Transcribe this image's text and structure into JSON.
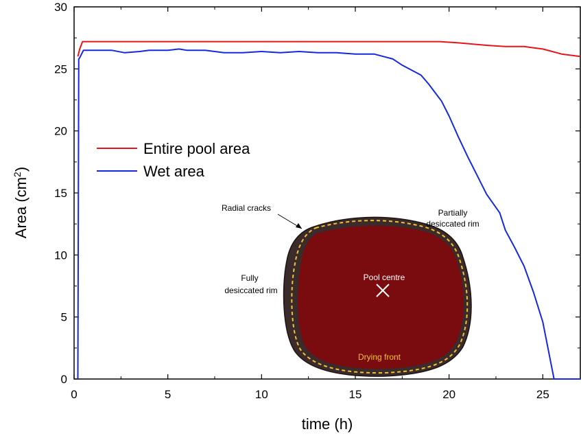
{
  "chart_data": {
    "type": "line",
    "xlabel": "time (h)",
    "ylabel": "Area (cm",
    "ylabel_sup": "2",
    "ylabel_close": ")",
    "xlim": [
      0,
      27
    ],
    "ylim": [
      0,
      30
    ],
    "xticks": [
      0,
      5,
      10,
      15,
      20,
      25
    ],
    "yticks": [
      0,
      5,
      10,
      15,
      20,
      25,
      30
    ],
    "grid": false,
    "legend_position": "left, upper-middle",
    "series": [
      {
        "name": "Entire pool area",
        "color": "#e8141c",
        "x": [
          0.2,
          0.3,
          0.45,
          2,
          6,
          10,
          14,
          17,
          19.5,
          20.5,
          22,
          23,
          24,
          24.5,
          25,
          25.5,
          26,
          26.5,
          27
        ],
        "y": [
          26.0,
          26.6,
          27.2,
          27.2,
          27.2,
          27.2,
          27.2,
          27.2,
          27.2,
          27.1,
          26.9,
          26.8,
          26.8,
          26.7,
          26.6,
          26.4,
          26.2,
          26.1,
          26.0
        ]
      },
      {
        "name": "Wet area",
        "color": "#1428e0",
        "x": [
          0.2,
          0.25,
          0.3,
          0.5,
          1,
          2,
          2.7,
          3.5,
          4,
          5,
          5.6,
          6,
          7,
          8,
          9,
          10,
          11,
          12,
          13,
          14,
          15,
          16,
          16.5,
          17,
          17.5,
          18,
          18.5,
          18.9,
          19.2,
          19.6,
          20,
          20.5,
          21,
          21.5,
          22,
          22.7,
          23,
          23.5,
          24,
          24.5,
          25,
          25.3,
          25.6,
          25.8,
          26.5,
          27
        ],
        "y": [
          0.0,
          25.8,
          25.9,
          26.5,
          26.5,
          26.5,
          26.3,
          26.4,
          26.5,
          26.5,
          26.6,
          26.5,
          26.5,
          26.3,
          26.3,
          26.4,
          26.3,
          26.4,
          26.3,
          26.3,
          26.2,
          26.2,
          26.0,
          25.8,
          25.3,
          24.9,
          24.5,
          23.8,
          23.2,
          22.4,
          21.2,
          19.5,
          17.9,
          16.4,
          14.9,
          13.4,
          12.0,
          10.6,
          9.1,
          7.0,
          4.6,
          2.3,
          0.0,
          0.0,
          0.0,
          0.0
        ]
      }
    ],
    "inset": {
      "labels": {
        "radial_cracks": "Radial cracks",
        "partially_1": "Partially",
        "partially_2": "desiccated rim",
        "fully_1": "Fully",
        "fully_2": "desiccated rim",
        "pool_centre": "Pool centre",
        "drying_front": "Drying front"
      },
      "colors": {
        "pool": "#7a0c10",
        "rim": "#3b2b2b",
        "front": "#f2c230"
      }
    }
  }
}
